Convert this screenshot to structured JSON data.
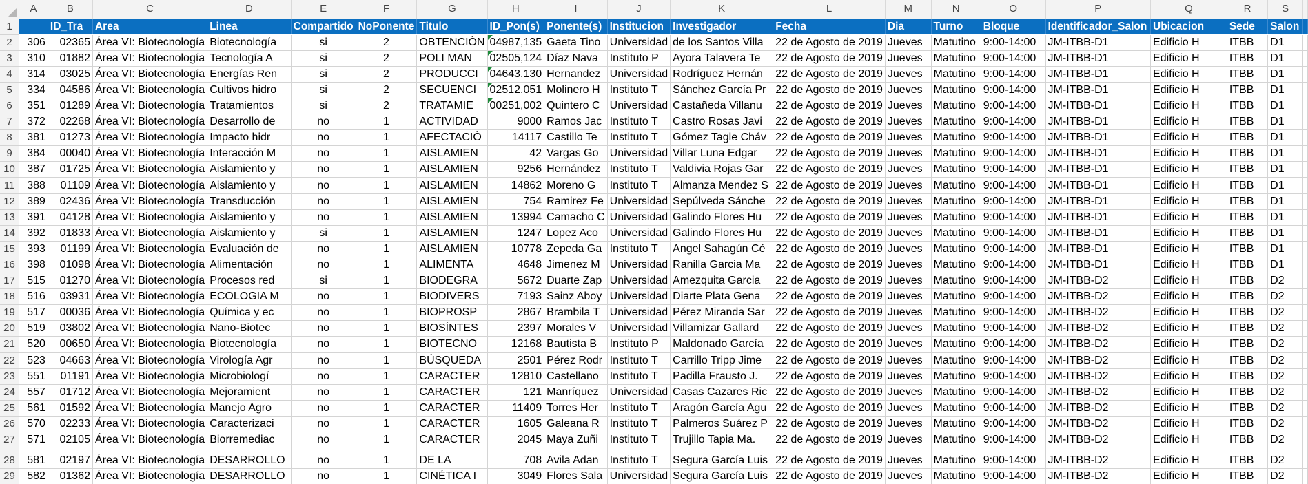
{
  "spreadsheet": {
    "column_letters": [
      "A",
      "B",
      "C",
      "D",
      "E",
      "F",
      "G",
      "H",
      "I",
      "J",
      "K",
      "L",
      "M",
      "N",
      "O",
      "P",
      "Q",
      "R",
      "S"
    ],
    "header_row": {
      "row_number": "1",
      "cells": [
        "",
        "ID_Tra",
        "Area",
        "Linea",
        "Compartido",
        "NoPonente",
        "Titulo",
        "ID_Pon(s)",
        "Ponente(s)",
        "Institucion",
        "Investigador",
        "Fecha",
        "Dia",
        "Turno",
        "Bloque",
        "Identificador_Salon",
        "Ubicacion",
        "Sede",
        "Salon"
      ]
    },
    "rows": [
      {
        "row_number": "2",
        "cells": [
          "306",
          "02365",
          "Área VI: Biotecnología",
          "Biotecnología",
          "si",
          "2",
          "OBTENCIÓN",
          "04987,135",
          "Gaeta Tino",
          "Universidad",
          "de los Santos Villa",
          "22 de Agosto de 2019",
          "Jueves",
          "Matutino",
          "9:00-14:00",
          "JM-ITBB-D1",
          "Edificio H",
          "ITBB",
          "D1"
        ]
      },
      {
        "row_number": "3",
        "cells": [
          "310",
          "01882",
          "Área VI: Biotecnología",
          "Tecnología A",
          "si",
          "2",
          "POLI MAN",
          "02505,124",
          "Díaz Nava",
          "Instituto P",
          "Ayora Talavera Te",
          "22 de Agosto de 2019",
          "Jueves",
          "Matutino",
          "9:00-14:00",
          "JM-ITBB-D1",
          "Edificio H",
          "ITBB",
          "D1"
        ]
      },
      {
        "row_number": "4",
        "cells": [
          "314",
          "03025",
          "Área VI: Biotecnología",
          "Energías Ren",
          "si",
          "2",
          "PRODUCCI",
          "04643,130",
          "Hernandez",
          "Universidad",
          "Rodríguez Hernán",
          "22 de Agosto de 2019",
          "Jueves",
          "Matutino",
          "9:00-14:00",
          "JM-ITBB-D1",
          "Edificio H",
          "ITBB",
          "D1"
        ]
      },
      {
        "row_number": "5",
        "cells": [
          "334",
          "04586",
          "Área VI: Biotecnología",
          "Cultivos hidro",
          "si",
          "2",
          "SECUENCI",
          "02512,051",
          "Molinero H",
          "Instituto T",
          "Sánchez García Pr",
          "22 de Agosto de 2019",
          "Jueves",
          "Matutino",
          "9:00-14:00",
          "JM-ITBB-D1",
          "Edificio H",
          "ITBB",
          "D1"
        ]
      },
      {
        "row_number": "6",
        "cells": [
          "351",
          "01289",
          "Área VI: Biotecnología",
          "Tratamientos",
          "si",
          "2",
          "TRATAMIE",
          "00251,002",
          "Quintero C",
          "Universidad",
          "Castañeda Villanu",
          "22 de Agosto de 2019",
          "Jueves",
          "Matutino",
          "9:00-14:00",
          "JM-ITBB-D1",
          "Edificio H",
          "ITBB",
          "D1"
        ]
      },
      {
        "row_number": "7",
        "cells": [
          "372",
          "02268",
          "Área VI: Biotecnología",
          "Desarrollo de",
          "no",
          "1",
          "ACTIVIDAD",
          "9000",
          "Ramos Jac",
          "Instituto T",
          "Castro Rosas Javi",
          "22 de Agosto de 2019",
          "Jueves",
          "Matutino",
          "9:00-14:00",
          "JM-ITBB-D1",
          "Edificio H",
          "ITBB",
          "D1"
        ]
      },
      {
        "row_number": "8",
        "cells": [
          "381",
          "01273",
          "Área VI: Biotecnología",
          "Impacto hidr",
          "no",
          "1",
          "AFECTACIÓ",
          "14117",
          "Castillo Te",
          "Instituto T",
          "Gómez Tagle Cháv",
          "22 de Agosto de 2019",
          "Jueves",
          "Matutino",
          "9:00-14:00",
          "JM-ITBB-D1",
          "Edificio H",
          "ITBB",
          "D1"
        ]
      },
      {
        "row_number": "9",
        "cells": [
          "384",
          "00040",
          "Área VI: Biotecnología",
          "Interacción M",
          "no",
          "1",
          "AISLAMIEN",
          "42",
          "Vargas Go",
          "Universidad",
          "Villar Luna Edgar",
          "22 de Agosto de 2019",
          "Jueves",
          "Matutino",
          "9:00-14:00",
          "JM-ITBB-D1",
          "Edificio H",
          "ITBB",
          "D1"
        ]
      },
      {
        "row_number": "10",
        "cells": [
          "387",
          "01725",
          "Área VI: Biotecnología",
          "Aislamiento y",
          "no",
          "1",
          "AISLAMIEN",
          "9256",
          "Hernández",
          "Instituto T",
          "Valdivia Rojas Gar",
          "22 de Agosto de 2019",
          "Jueves",
          "Matutino",
          "9:00-14:00",
          "JM-ITBB-D1",
          "Edificio H",
          "ITBB",
          "D1"
        ]
      },
      {
        "row_number": "11",
        "cells": [
          "388",
          "01109",
          "Área VI: Biotecnología",
          "Aislamiento y",
          "no",
          "1",
          "AISLAMIEN",
          "14862",
          "Moreno G",
          "Instituto T",
          "Almanza Mendez S",
          "22 de Agosto de 2019",
          "Jueves",
          "Matutino",
          "9:00-14:00",
          "JM-ITBB-D1",
          "Edificio H",
          "ITBB",
          "D1"
        ]
      },
      {
        "row_number": "12",
        "cells": [
          "389",
          "02436",
          "Área VI: Biotecnología",
          "Transducción",
          "no",
          "1",
          "AISLAMIEN",
          "754",
          "Ramirez Fe",
          "Universidad",
          "Sepúlveda Sánche",
          "22 de Agosto de 2019",
          "Jueves",
          "Matutino",
          "9:00-14:00",
          "JM-ITBB-D1",
          "Edificio H",
          "ITBB",
          "D1"
        ]
      },
      {
        "row_number": "13",
        "cells": [
          "391",
          "04128",
          "Área VI: Biotecnología",
          "Aislamiento y",
          "no",
          "1",
          "AISLAMIEN",
          "13994",
          "Camacho C",
          "Universidad",
          "Galindo Flores Hu",
          "22 de Agosto de 2019",
          "Jueves",
          "Matutino",
          "9:00-14:00",
          "JM-ITBB-D1",
          "Edificio H",
          "ITBB",
          "D1"
        ]
      },
      {
        "row_number": "14",
        "cells": [
          "392",
          "01833",
          "Área VI: Biotecnología",
          "Aislamiento y",
          "si",
          "1",
          "AISLAMIEN",
          "1247",
          "Lopez Aco",
          "Universidad",
          "Galindo Flores Hu",
          "22 de Agosto de 2019",
          "Jueves",
          "Matutino",
          "9:00-14:00",
          "JM-ITBB-D1",
          "Edificio H",
          "ITBB",
          "D1"
        ]
      },
      {
        "row_number": "15",
        "cells": [
          "393",
          "01199",
          "Área VI: Biotecnología",
          "Evaluación de",
          "no",
          "1",
          "AISLAMIEN",
          "10778",
          "Zepeda Ga",
          "Instituto T",
          "Angel Sahagún Cé",
          "22 de Agosto de 2019",
          "Jueves",
          "Matutino",
          "9:00-14:00",
          "JM-ITBB-D1",
          "Edificio H",
          "ITBB",
          "D1"
        ]
      },
      {
        "row_number": "16",
        "cells": [
          "398",
          "01098",
          "Área VI: Biotecnología",
          "Alimentación",
          "no",
          "1",
          "ALIMENTA",
          "4648",
          "Jimenez M",
          "Universidad",
          "Ranilla Garcia Ma",
          "22 de Agosto de 2019",
          "Jueves",
          "Matutino",
          "9:00-14:00",
          "JM-ITBB-D1",
          "Edificio H",
          "ITBB",
          "D1"
        ]
      },
      {
        "row_number": "17",
        "cells": [
          "515",
          "01270",
          "Área VI: Biotecnología",
          "Procesos red",
          "si",
          "1",
          "BIODEGRA",
          "5672",
          "Duarte Zap",
          "Universidad",
          "Amezquita Garcia",
          "22 de Agosto de 2019",
          "Jueves",
          "Matutino",
          "9:00-14:00",
          "JM-ITBB-D2",
          "Edificio H",
          "ITBB",
          "D2"
        ]
      },
      {
        "row_number": "18",
        "cells": [
          "516",
          "03931",
          "Área VI: Biotecnología",
          "ECOLOGIA M",
          "no",
          "1",
          "BIODIVERS",
          "7193",
          "Sainz Aboy",
          "Universidad",
          "Diarte Plata Gena",
          "22 de Agosto de 2019",
          "Jueves",
          "Matutino",
          "9:00-14:00",
          "JM-ITBB-D2",
          "Edificio H",
          "ITBB",
          "D2"
        ]
      },
      {
        "row_number": "19",
        "cells": [
          "517",
          "00036",
          "Área VI: Biotecnología",
          "Química y ec",
          "no",
          "1",
          "BIOPROSP",
          "2867",
          "Brambila T",
          "Universidad",
          "Pérez Miranda Sar",
          "22 de Agosto de 2019",
          "Jueves",
          "Matutino",
          "9:00-14:00",
          "JM-ITBB-D2",
          "Edificio H",
          "ITBB",
          "D2"
        ]
      },
      {
        "row_number": "20",
        "cells": [
          "519",
          "03802",
          "Área VI: Biotecnología",
          "Nano-Biotec",
          "no",
          "1",
          "BIOSÍNTES",
          "2397",
          "Morales V",
          "Universidad",
          "Villamizar Gallard",
          "22 de Agosto de 2019",
          "Jueves",
          "Matutino",
          "9:00-14:00",
          "JM-ITBB-D2",
          "Edificio H",
          "ITBB",
          "D2"
        ]
      },
      {
        "row_number": "21",
        "cells": [
          "520",
          "00650",
          "Área VI: Biotecnología",
          "Biotecnología",
          "no",
          "1",
          "BIOTECNO",
          "12168",
          "Bautista B",
          "Instituto P",
          "Maldonado García",
          "22 de Agosto de 2019",
          "Jueves",
          "Matutino",
          "9:00-14:00",
          "JM-ITBB-D2",
          "Edificio H",
          "ITBB",
          "D2"
        ]
      },
      {
        "row_number": "22",
        "cells": [
          "523",
          "04663",
          "Área VI: Biotecnología",
          "Virología Agr",
          "no",
          "1",
          "BÚSQUEDA",
          "2501",
          "Pérez Rodr",
          "Instituto T",
          "Carrillo Tripp Jime",
          "22 de Agosto de 2019",
          "Jueves",
          "Matutino",
          "9:00-14:00",
          "JM-ITBB-D2",
          "Edificio H",
          "ITBB",
          "D2"
        ]
      },
      {
        "row_number": "23",
        "cells": [
          "551",
          "01191",
          "Área VI: Biotecnología",
          "Microbiologí",
          "no",
          "1",
          "CARACTER",
          "12810",
          "Castellano",
          "Instituto T",
          "Padilla Frausto J.",
          "22 de Agosto de 2019",
          "Jueves",
          "Matutino",
          "9:00-14:00",
          "JM-ITBB-D2",
          "Edificio H",
          "ITBB",
          "D2"
        ]
      },
      {
        "row_number": "24",
        "cells": [
          "557",
          "01712",
          "Área VI: Biotecnología",
          "Mejoramient",
          "no",
          "1",
          "CARACTER",
          "121",
          "Manríquez",
          "Universidad",
          "Casas Cazares Ric",
          "22 de Agosto de 2019",
          "Jueves",
          "Matutino",
          "9:00-14:00",
          "JM-ITBB-D2",
          "Edificio H",
          "ITBB",
          "D2"
        ]
      },
      {
        "row_number": "25",
        "cells": [
          "561",
          "01592",
          "Área VI: Biotecnología",
          "Manejo Agro",
          "no",
          "1",
          "CARACTER",
          "11409",
          "Torres Her",
          "Instituto T",
          "Aragón García Agu",
          "22 de Agosto de 2019",
          "Jueves",
          "Matutino",
          "9:00-14:00",
          "JM-ITBB-D2",
          "Edificio H",
          "ITBB",
          "D2"
        ]
      },
      {
        "row_number": "26",
        "cells": [
          "570",
          "02233",
          "Área VI: Biotecnología",
          "Caracterizaci",
          "no",
          "1",
          "CARACTER",
          "1605",
          "Galeana R",
          "Instituto T",
          "Palmeros Suárez P",
          "22 de Agosto de 2019",
          "Jueves",
          "Matutino",
          "9:00-14:00",
          "JM-ITBB-D2",
          "Edificio H",
          "ITBB",
          "D2"
        ]
      },
      {
        "row_number": "27",
        "cells": [
          "571",
          "02105",
          "Área VI: Biotecnología",
          "Biorremediac",
          "no",
          "1",
          "CARACTER",
          "2045",
          "Maya Zuñi",
          "Instituto T",
          "Trujillo Tapia Ma.",
          "22 de Agosto de 2019",
          "Jueves",
          "Matutino",
          "9:00-14:00",
          "JM-ITBB-D2",
          "Edificio H",
          "ITBB",
          "D2"
        ]
      },
      {
        "row_number": "28",
        "cells": [
          "581",
          "02197",
          "Área VI: Biotecnología",
          "DESARROLLO",
          "no",
          "1",
          "DE LA",
          "708",
          "Avila Adan",
          "Instituto T",
          "Segura García Luis",
          "22 de Agosto de 2019",
          "Jueves",
          "Matutino",
          "9:00-14:00",
          "JM-ITBB-D2",
          "Edificio H",
          "ITBB",
          "D2"
        ]
      },
      {
        "row_number": "29",
        "cells": [
          "582",
          "01362",
          "Área VI: Biotecnología",
          "DESARROLLO",
          "no",
          "1",
          "CINÉTICA I",
          "3049",
          "Flores Sala",
          "Universidad",
          "Segura García Luis",
          "22 de Agosto de 2019",
          "Jueves",
          "Matutino",
          "9:00-14:00",
          "JM-ITBB-D2",
          "Edificio H",
          "ITBB",
          "D2"
        ]
      }
    ]
  },
  "colors": {
    "header_fill": "#0b6fc1",
    "header_text": "#ffffff",
    "comment_indicator": "#1e8b3a"
  }
}
